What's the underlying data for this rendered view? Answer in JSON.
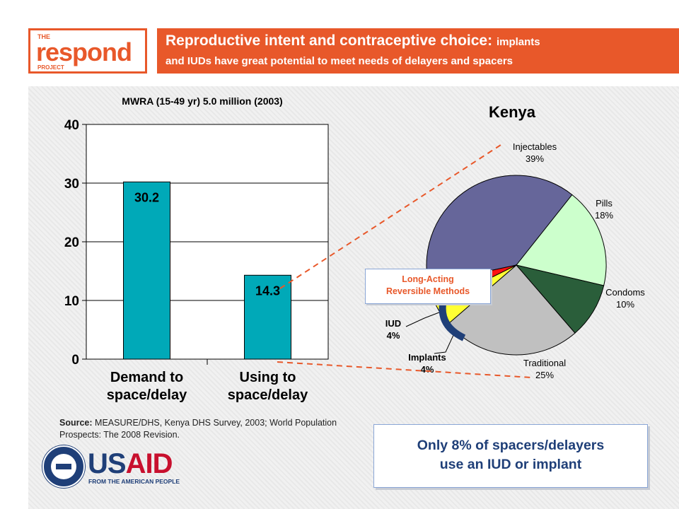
{
  "logo": {
    "the": "THE",
    "word": "respond",
    "project": "PROJECT"
  },
  "header": {
    "title_main": "Reproductive intent and contraceptive choice:",
    "title_small": "implants",
    "title_line2": "and IUDs have great potential to meet needs of delayers and spacers"
  },
  "colors": {
    "accent": "#e8582a",
    "bar": "#00a9b8",
    "navy": "#1f3f78"
  },
  "chart_data": [
    {
      "type": "bar",
      "title": "MWRA (15-49 yr) 5.0 million (2003)",
      "categories": [
        "Demand to space/delay",
        "Using to space/delay"
      ],
      "category_lines": [
        [
          "Demand to",
          "space/delay"
        ],
        [
          "Using to",
          "space/delay"
        ]
      ],
      "values": [
        30.2,
        14.3
      ],
      "data_labels": [
        "30.2",
        "14.3"
      ],
      "ylim": [
        0,
        40
      ],
      "yticks": [
        "0",
        "10",
        "20",
        "30",
        "40"
      ],
      "grid": true
    },
    {
      "type": "pie",
      "title": "Kenya",
      "slices": [
        {
          "label": "Injectables",
          "pct_label": "39%",
          "value": 39,
          "color": "#66669a"
        },
        {
          "label": "Pills",
          "pct_label": "18%",
          "value": 18,
          "color": "#ccffcc"
        },
        {
          "label": "Condoms",
          "pct_label": "10%",
          "value": 10,
          "color": "#2a5e3a"
        },
        {
          "label": "Traditional",
          "pct_label": "25%",
          "value": 25,
          "color": "#c0c0c0"
        },
        {
          "label": "Implants",
          "pct_label": "4%",
          "value": 4,
          "color": "#ffff33"
        },
        {
          "label": "IUD",
          "pct_label": "4%",
          "value": 4,
          "color": "#ff1111"
        }
      ]
    }
  ],
  "source": {
    "label": "Source:",
    "text": "MEASURE/DHS, Kenya DHS Survey, 2003; World Population Prospects: The 2008 Revision."
  },
  "callout": {
    "line1": "Only 8% of spacers/delayers",
    "line2": "use an IUD or implant"
  },
  "lam_box": {
    "line1": "Long-Acting",
    "line2": "Reversible Methods"
  },
  "usaid": {
    "us": "US",
    "aid": "AID",
    "tagline": "FROM THE AMERICAN PEOPLE"
  }
}
